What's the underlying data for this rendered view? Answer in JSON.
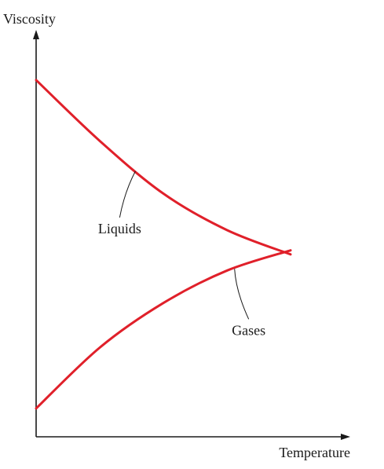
{
  "chart_data": {
    "type": "line",
    "title": "",
    "xlabel": "Temperature",
    "ylabel": "Viscosity",
    "xlim": [
      0,
      1
    ],
    "ylim": [
      0,
      1
    ],
    "grid": false,
    "legend": "none",
    "series": [
      {
        "name": "Liquids",
        "color": "#e0202a",
        "x": [
          0,
          0.25,
          0.5,
          0.75,
          1
        ],
        "y": [
          0.88,
          0.73,
          0.6,
          0.51,
          0.45
        ]
      },
      {
        "name": "Gases",
        "color": "#e0202a",
        "x": [
          0,
          0.25,
          0.5,
          0.75,
          1
        ],
        "y": [
          0.07,
          0.22,
          0.33,
          0.41,
          0.46
        ]
      }
    ],
    "annotations": [
      {
        "series": "Liquids",
        "text": "Liquids",
        "x": 0.39
      },
      {
        "series": "Gases",
        "text": "Gases",
        "x": 0.78
      }
    ]
  }
}
